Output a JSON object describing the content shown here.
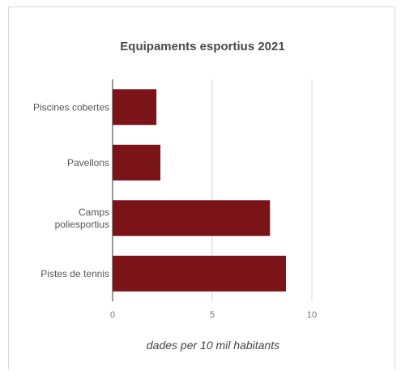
{
  "chart_data": {
    "type": "bar",
    "orientation": "horizontal",
    "title": "Equipaments esportius 2021",
    "xlabel": "dades per 10 mil habitants",
    "ylabel": "",
    "categories": [
      "Piscines cobertes",
      "Pavellons",
      "Camps poliesportius",
      "Pistes de tennis"
    ],
    "category_lines": [
      [
        "Piscines cobertes"
      ],
      [
        "Pavellons"
      ],
      [
        "Camps",
        "poliesportius"
      ],
      [
        "Pistes de tennis"
      ]
    ],
    "values": [
      2.2,
      2.4,
      7.9,
      8.7
    ],
    "xlim": [
      0,
      10
    ],
    "xticks": [
      "0",
      "5",
      "10"
    ],
    "grid": true,
    "legend": "none",
    "bar_color": "#7b1419"
  }
}
